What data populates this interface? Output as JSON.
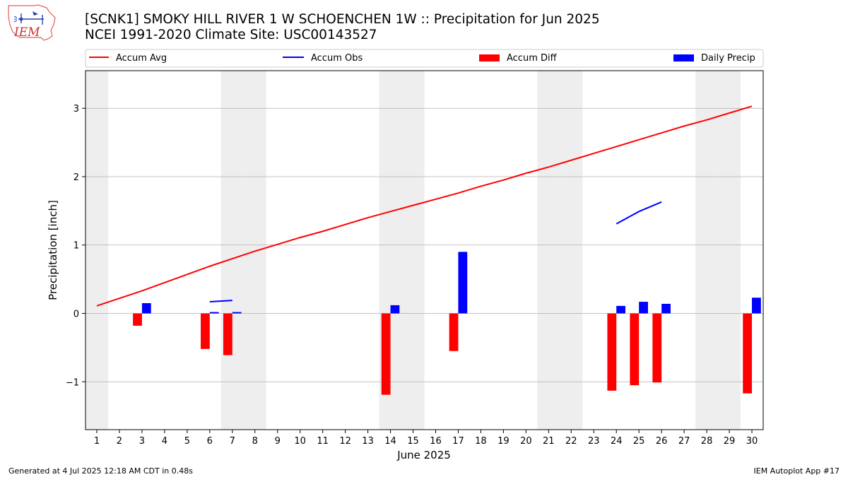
{
  "logo": {
    "text": "IEM"
  },
  "header": {
    "title_line1": "[SCNK1] SMOKY HILL RIVER 1 W SCHOENCHEN 1W :: Precipitation for Jun 2025",
    "title_line2": "NCEI 1991-2020 Climate Site: USC00143527"
  },
  "footer": {
    "generated": "Generated at 4 Jul 2025 12:18 AM CDT in 0.48s",
    "app": "IEM Autoplot App #17"
  },
  "colors": {
    "avg": "#ff0000",
    "obs": "#0000ff",
    "diff": "#ff0000",
    "daily": "#0000ff",
    "weekend": "#eeeeee",
    "grid": "#b0b0b0"
  },
  "chart_data": {
    "type": "bar",
    "xlabel": "June 2025",
    "ylabel": "Precipitation [inch]",
    "xlim": [
      0.5,
      30.5
    ],
    "ylim": [
      -1.7,
      3.55
    ],
    "x_ticks": [
      1,
      2,
      3,
      4,
      5,
      6,
      7,
      8,
      9,
      10,
      11,
      12,
      13,
      14,
      15,
      16,
      17,
      18,
      19,
      20,
      21,
      22,
      23,
      24,
      25,
      26,
      27,
      28,
      29,
      30
    ],
    "y_ticks": [
      -1,
      0,
      1,
      2,
      3
    ],
    "y_tick_labels": [
      "−1",
      "0",
      "1",
      "2",
      "3"
    ],
    "grid": true,
    "weekend_days": [
      1,
      7,
      8,
      14,
      15,
      21,
      22,
      28,
      29
    ],
    "legend": {
      "placement": "top",
      "entries": [
        "Accum Avg",
        "Accum Obs",
        "Accum Diff",
        "Daily Precip"
      ]
    },
    "series": [
      {
        "name": "Accum Avg",
        "kind": "line",
        "x": [
          1,
          2,
          3,
          4,
          5,
          6,
          7,
          8,
          9,
          10,
          11,
          12,
          13,
          14,
          15,
          16,
          17,
          18,
          19,
          20,
          21,
          22,
          23,
          24,
          25,
          26,
          27,
          28,
          29,
          30
        ],
        "values": [
          0.11,
          0.22,
          0.33,
          0.45,
          0.57,
          0.69,
          0.8,
          0.91,
          1.01,
          1.11,
          1.2,
          1.3,
          1.4,
          1.49,
          1.58,
          1.67,
          1.76,
          1.86,
          1.95,
          2.05,
          2.14,
          2.24,
          2.34,
          2.44,
          2.54,
          2.64,
          2.74,
          2.83,
          2.93,
          3.03
        ]
      },
      {
        "name": "Accum Obs",
        "kind": "line",
        "segments": [
          {
            "x": [
              6,
              7
            ],
            "values": [
              0.17,
              0.19
            ]
          },
          {
            "x": [
              24,
              25,
              26
            ],
            "values": [
              1.31,
              1.49,
              1.63
            ]
          }
        ]
      },
      {
        "name": "Accum Diff",
        "kind": "bar",
        "x": [
          3,
          6,
          7,
          14,
          17,
          24,
          25,
          26,
          30
        ],
        "values": [
          -0.18,
          -0.52,
          -0.61,
          -1.19,
          -0.55,
          -1.13,
          -1.05,
          -1.01,
          -1.17
        ]
      },
      {
        "name": "Daily Precip",
        "kind": "bar",
        "x": [
          3,
          6,
          7,
          14,
          17,
          24,
          25,
          26,
          30
        ],
        "values": [
          0.15,
          0.02,
          0.02,
          0.12,
          0.9,
          0.11,
          0.17,
          0.14,
          0.23
        ]
      }
    ]
  }
}
